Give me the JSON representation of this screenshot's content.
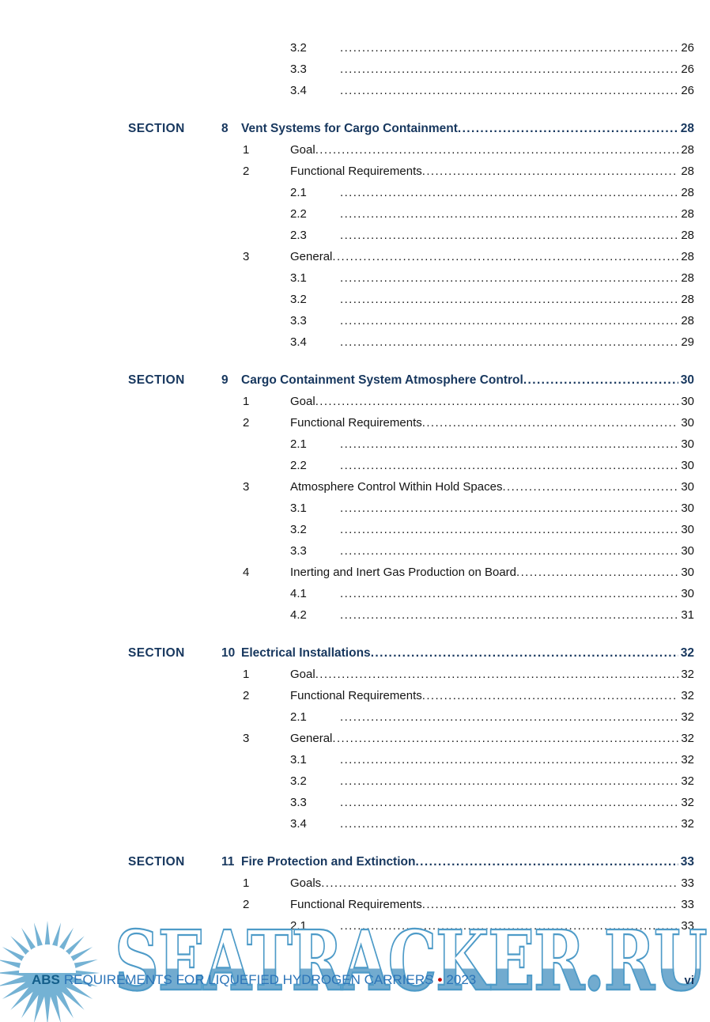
{
  "document": {
    "watermark_text": "SEATRACKER.RU",
    "footer": {
      "brand": "ABS",
      "title": "REQUIREMENTS FOR LIQUEFIED HYDROGEN CARRIERS",
      "separator": "•",
      "year": "2023",
      "page_number": "vi"
    }
  },
  "toc": {
    "orphan_entries": [
      {
        "level": 2,
        "num": "3.2",
        "page": "26"
      },
      {
        "level": 2,
        "num": "3.3",
        "page": "26"
      },
      {
        "level": 2,
        "num": "3.4",
        "page": "26"
      }
    ],
    "sections": [
      {
        "label": "SECTION",
        "number": "8",
        "title": "Vent Systems for Cargo Containment",
        "page": "28",
        "entries": [
          {
            "level": 1,
            "num": "1",
            "title": "Goal",
            "page": "28"
          },
          {
            "level": 1,
            "num": "2",
            "title": "Functional Requirements",
            "page": "28"
          },
          {
            "level": 2,
            "num": "2.1",
            "page": "28"
          },
          {
            "level": 2,
            "num": "2.2",
            "page": "28"
          },
          {
            "level": 2,
            "num": "2.3",
            "page": "28"
          },
          {
            "level": 1,
            "num": "3",
            "title": "General",
            "page": "28"
          },
          {
            "level": 2,
            "num": "3.1",
            "page": "28"
          },
          {
            "level": 2,
            "num": "3.2",
            "page": "28"
          },
          {
            "level": 2,
            "num": "3.3",
            "page": "28"
          },
          {
            "level": 2,
            "num": "3.4",
            "page": "29"
          }
        ]
      },
      {
        "label": "SECTION",
        "number": "9",
        "title": "Cargo Containment System Atmosphere Control",
        "page": "30",
        "entries": [
          {
            "level": 1,
            "num": "1",
            "title": "Goal",
            "page": "30"
          },
          {
            "level": 1,
            "num": "2",
            "title": "Functional Requirements",
            "page": "30"
          },
          {
            "level": 2,
            "num": "2.1",
            "page": "30"
          },
          {
            "level": 2,
            "num": "2.2",
            "page": "30"
          },
          {
            "level": 1,
            "num": "3",
            "title": "Atmosphere Control Within Hold Spaces",
            "page": "30"
          },
          {
            "level": 2,
            "num": "3.1",
            "page": "30"
          },
          {
            "level": 2,
            "num": "3.2",
            "page": "30"
          },
          {
            "level": 2,
            "num": "3.3",
            "page": "30"
          },
          {
            "level": 1,
            "num": "4",
            "title": "Inerting and Inert Gas Production on Board",
            "page": "30"
          },
          {
            "level": 2,
            "num": "4.1",
            "page": "30"
          },
          {
            "level": 2,
            "num": "4.2",
            "page": "31"
          }
        ]
      },
      {
        "label": "SECTION",
        "number": "10",
        "title": "Electrical Installations",
        "page": "32",
        "entries": [
          {
            "level": 1,
            "num": "1",
            "title": "Goal",
            "page": "32"
          },
          {
            "level": 1,
            "num": "2",
            "title": "Functional Requirements",
            "page": "32"
          },
          {
            "level": 2,
            "num": "2.1",
            "page": "32"
          },
          {
            "level": 1,
            "num": "3",
            "title": "General",
            "page": "32"
          },
          {
            "level": 2,
            "num": "3.1",
            "page": "32"
          },
          {
            "level": 2,
            "num": "3.2",
            "page": "32"
          },
          {
            "level": 2,
            "num": "3.3",
            "page": "32"
          },
          {
            "level": 2,
            "num": "3.4",
            "page": "32"
          }
        ]
      },
      {
        "label": "SECTION",
        "number": "11",
        "title": "Fire Protection and Extinction",
        "page": "33",
        "entries": [
          {
            "level": 1,
            "num": "1",
            "title": "Goals",
            "page": "33"
          },
          {
            "level": 1,
            "num": "2",
            "title": "Functional Requirements",
            "page": "33"
          },
          {
            "level": 2,
            "num": "2.1",
            "page": "33"
          }
        ]
      }
    ]
  },
  "colors": {
    "heading": "#17375E",
    "entry_text": "#141414",
    "footer_brand": "#135E8A",
    "footer_text": "#2B74B8",
    "footer_dot": "#C00000",
    "watermark_outline": "#4E9BC8",
    "watermark_fill": "#72ABCF",
    "sun": "#74B2D4"
  }
}
